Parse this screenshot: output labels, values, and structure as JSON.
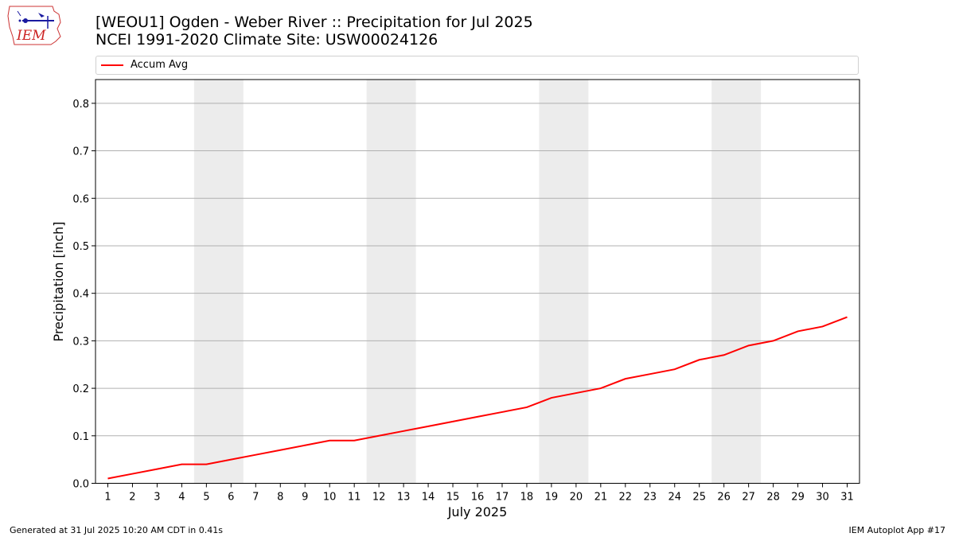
{
  "header": {
    "title_line1": "[WEOU1] Ogden - Weber River :: Precipitation for Jul 2025",
    "title_line2": "NCEI 1991-2020 Climate Site: USW00024126"
  },
  "logo": {
    "text": "IEM"
  },
  "footer": {
    "generated": "Generated at 31 Jul 2025 10:20 AM CDT in 0.41s",
    "app": "IEM Autoplot App #17"
  },
  "chart_data": {
    "type": "line",
    "title": "[WEOU1] Ogden - Weber River :: Precipitation for Jul 2025",
    "subtitle": "NCEI 1991-2020 Climate Site: USW00024126",
    "xlabel": "July 2025",
    "ylabel": "Precipitation [inch]",
    "x": [
      1,
      2,
      3,
      4,
      5,
      6,
      7,
      8,
      9,
      10,
      11,
      12,
      13,
      14,
      15,
      16,
      17,
      18,
      19,
      20,
      21,
      22,
      23,
      24,
      25,
      26,
      27,
      28,
      29,
      30,
      31
    ],
    "x_tick_labels": [
      "1",
      "2",
      "3",
      "4",
      "5",
      "6",
      "7",
      "8",
      "9",
      "10",
      "11",
      "12",
      "13",
      "14",
      "15",
      "16",
      "17",
      "18",
      "19",
      "20",
      "21",
      "22",
      "23",
      "24",
      "25",
      "26",
      "27",
      "28",
      "29",
      "30",
      "31"
    ],
    "xlim": [
      0.5,
      31.5
    ],
    "ylim": [
      0,
      0.85
    ],
    "y_ticks": [
      0.0,
      0.1,
      0.2,
      0.3,
      0.4,
      0.5,
      0.6,
      0.7,
      0.8
    ],
    "y_tick_labels": [
      "0.0",
      "0.1",
      "0.2",
      "0.3",
      "0.4",
      "0.5",
      "0.6",
      "0.7",
      "0.8"
    ],
    "grid": "horizontal",
    "legend_position": "top",
    "weekend_shading": [
      [
        4.5,
        6.5
      ],
      [
        11.5,
        13.5
      ],
      [
        18.5,
        20.5
      ],
      [
        25.5,
        27.5
      ]
    ],
    "shade_color": "#ececec",
    "series": [
      {
        "name": "Accum Avg",
        "color": "#ff0000",
        "values": [
          0.01,
          0.02,
          0.03,
          0.04,
          0.04,
          0.05,
          0.06,
          0.07,
          0.08,
          0.09,
          0.09,
          0.1,
          0.11,
          0.12,
          0.13,
          0.14,
          0.15,
          0.16,
          0.18,
          0.19,
          0.2,
          0.22,
          0.23,
          0.24,
          0.26,
          0.27,
          0.29,
          0.3,
          0.32,
          0.33,
          0.35
        ]
      }
    ]
  }
}
